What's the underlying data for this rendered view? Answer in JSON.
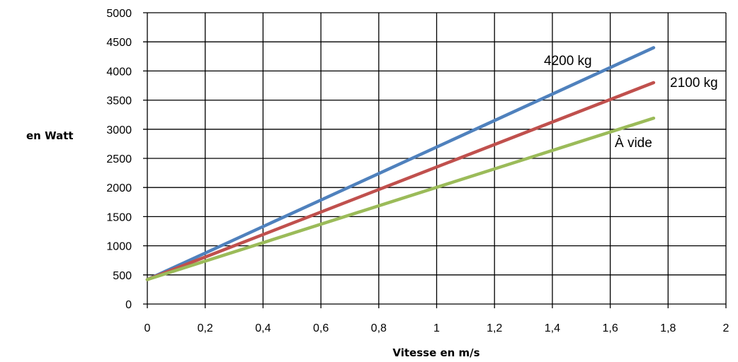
{
  "chart_data": {
    "type": "line",
    "title": "",
    "xlabel": "Vitesse en m/s",
    "ylabel": "en Watt",
    "xlim": [
      0,
      2
    ],
    "ylim": [
      0,
      5000
    ],
    "x_ticks": [
      "0",
      "0,2",
      "0,4",
      "0,6",
      "0,8",
      "1",
      "1,2",
      "1,4",
      "1,6",
      "1,8",
      "2"
    ],
    "y_ticks": [
      "0",
      "500",
      "1000",
      "1500",
      "2000",
      "2500",
      "3000",
      "3500",
      "4000",
      "4500",
      "5000"
    ],
    "grid": true,
    "series": [
      {
        "name": "4200 kg",
        "color": "#4f81bd",
        "x": [
          0,
          1.75
        ],
        "y": [
          420,
          4400
        ]
      },
      {
        "name": "2100 kg",
        "color": "#c0504d",
        "x": [
          0,
          1.75
        ],
        "y": [
          420,
          3800
        ]
      },
      {
        "name": "À vide",
        "color": "#9bbb59",
        "x": [
          0,
          1.75
        ],
        "y": [
          420,
          3190
        ]
      }
    ]
  }
}
